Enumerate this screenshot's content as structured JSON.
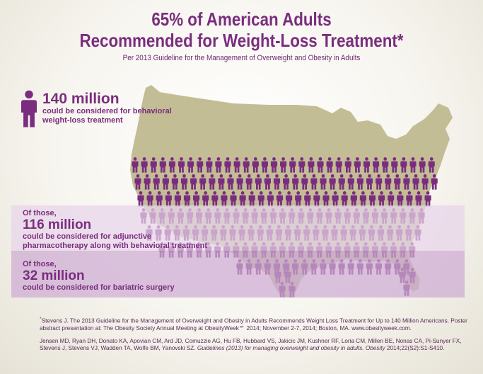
{
  "title": {
    "line1": "65% of American Adults",
    "line2": "Recommended for Weight-Loss Treatment*"
  },
  "subtitle": "Per 2013 Guideline for the Management of Overweight and Obesity in Adults",
  "callout_behavioral": {
    "amount": "140 million",
    "line1": "could be considered for behavioral",
    "line2": "weight-loss treatment"
  },
  "callout_pharmacotherapy": {
    "lead": "Of those,",
    "amount": "116 million",
    "line1": "could be considered for adjunctive",
    "line2": "pharmacotherapy along with behavioral treatment"
  },
  "callout_surgery": {
    "lead": "Of those,",
    "amount": "32 million",
    "line1": "could be considered for bariatric surgery"
  },
  "footnote1": {
    "marker": "*",
    "text": "Stevens J. The 2013 Guideline for the Management of Overweight and Obesity in Adults Recommends Weight Loss Treatment for Up to 140 Million Americans. Poster abstract presentation at: The Obesity Society Annual Meeting at ObesityWeek℠ 2014; November 2-7, 2014; Boston, MA.  www.obesityweek.com."
  },
  "footnote2": {
    "authors": "Jensen MD, Ryan DH, Donato KA, Apovian CM, Ard JD, Comuzzie AG, Hu FB, Hubbard VS, Jakicic JM, Kushner RF, Loria CM, Millen BE, Nonas CA, Pi-Sunyer FX, Stevens J, Stevens VJ, Wadden TA, Wolfe BM, Yanovski SZ. ",
    "article": "Guidelines (2013) for managing overweight and obesity in adults. Obesity ",
    "citation": "2014;22(S2):S1-S410."
  },
  "colors": {
    "accent": "#7a2d7e",
    "figure": "#7a2d7e",
    "map": "#c3bd96",
    "band_light": "#e8d4ea",
    "band_dark": "#cdaad2"
  },
  "icons": {
    "person": "person-icon",
    "map": "us-map"
  }
}
